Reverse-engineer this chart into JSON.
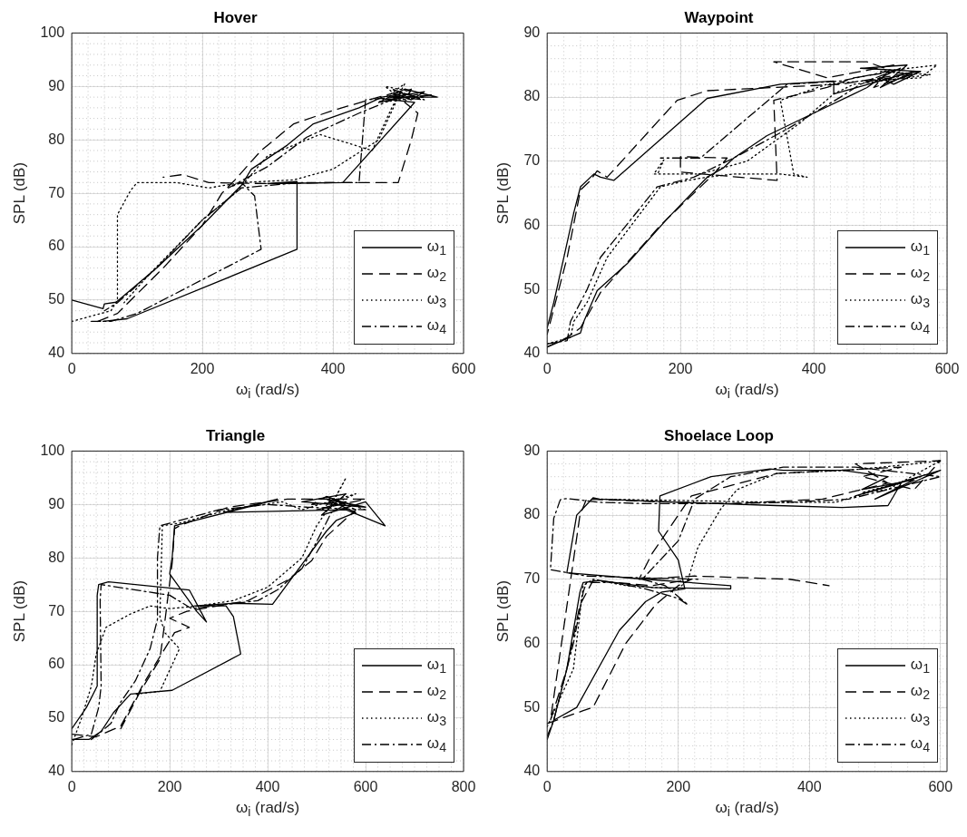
{
  "chart_data": [
    {
      "type": "line",
      "title": "Hover",
      "xlabel": "ω$_{i}$ (rad/s)",
      "ylabel": "SPL (dB)",
      "xlim": [
        0,
        600
      ],
      "xticks": [
        0,
        200,
        400,
        600
      ],
      "ylim": [
        40,
        100
      ],
      "yticks": [
        40,
        50,
        60,
        70,
        80,
        90,
        100
      ],
      "grid": true,
      "legend": "bottom right",
      "series": [
        {
          "name": "ω$_{1}$",
          "color": "#000000",
          "line_style": "solid",
          "x": [
            0,
            48,
            50,
            68,
            130,
            200,
            260,
            275,
            330,
            370,
            440,
            475,
            500,
            520,
            540,
            490,
            560,
            510,
            470,
            530,
            490,
            525,
            415,
            300,
            345,
            345,
            85,
            48
          ],
          "values": [
            50,
            48.4,
            49.3,
            49.6,
            56,
            64,
            71.5,
            74.5,
            79,
            83,
            86,
            88,
            88.5,
            87.5,
            89,
            88,
            88,
            89.5,
            87,
            88.5,
            87.5,
            87,
            72,
            71.8,
            72.2,
            59.5,
            46.5,
            46
          ]
        },
        {
          "name": "ω$_{2}$",
          "color": "#000000",
          "line_style": "dashed",
          "x": [
            40,
            70,
            140,
            200,
            230,
            250,
            290,
            340,
            400,
            470,
            500,
            530,
            555,
            480,
            520,
            510,
            530,
            520,
            500,
            400,
            300,
            210,
            170,
            140
          ],
          "values": [
            46,
            47.5,
            56,
            64,
            70,
            72.5,
            78,
            83,
            85.5,
            88,
            89,
            88,
            88.5,
            87.5,
            89.5,
            87,
            85,
            80,
            72,
            72,
            71.8,
            72,
            73.5,
            73
          ]
        },
        {
          "name": "ω$_{3}$",
          "color": "#000000",
          "line_style": "dotted",
          "x": [
            0,
            60,
            70,
            70,
            90,
            100,
            160,
            210,
            260,
            340,
            400,
            470,
            500,
            480,
            520,
            500,
            540,
            470,
            510,
            490,
            460,
            380,
            300,
            250,
            200,
            120,
            80
          ],
          "values": [
            46,
            48,
            50,
            66,
            70.5,
            72,
            72,
            71,
            72,
            72.5,
            74.5,
            80,
            88,
            90,
            89,
            87.5,
            88,
            87,
            90.5,
            86,
            78,
            81,
            77,
            70,
            65,
            55,
            49.5
          ]
        },
        {
          "name": "ω$_{4}$",
          "color": "#000000",
          "line_style": "dashdot",
          "x": [
            30,
            60,
            100,
            290,
            280,
            260,
            240,
            300,
            360,
            440,
            480,
            510,
            490,
            540,
            500,
            450,
            440,
            350,
            260,
            200,
            130,
            70,
            50
          ],
          "values": [
            46,
            46,
            47.5,
            59.5,
            69.5,
            72,
            71,
            75,
            80.5,
            85,
            87,
            88.5,
            89.5,
            87.5,
            88,
            87.5,
            72,
            72,
            71,
            65,
            56,
            49.5,
            48
          ]
        }
      ]
    },
    {
      "type": "line",
      "title": "Waypoint",
      "xlabel": "ω$_{i}$ (rad/s)",
      "ylabel": "SPL (dB)",
      "xlim": [
        0,
        600
      ],
      "xticks": [
        0,
        200,
        400,
        600
      ],
      "ylim": [
        40,
        90
      ],
      "yticks": [
        40,
        50,
        60,
        70,
        80,
        90
      ],
      "grid": true,
      "legend": "bottom right",
      "series": [
        {
          "name": "ω$_{1}$",
          "color": "#000000",
          "line_style": "solid",
          "x": [
            0,
            50,
            55,
            75,
            120,
            180,
            240,
            265,
            280,
            330,
            400,
            460,
            480,
            500,
            520,
            560,
            470,
            540,
            500,
            550,
            430,
            430,
            350,
            240,
            100,
            80,
            70,
            50,
            40,
            25,
            10,
            0
          ],
          "values": [
            41,
            43.2,
            45,
            49.8,
            54,
            61,
            67.5,
            69,
            70.5,
            74,
            77.5,
            80.5,
            81.5,
            83,
            82,
            84,
            84.5,
            85,
            81.5,
            84,
            80.5,
            82.5,
            82,
            79.8,
            67,
            67.5,
            68,
            66,
            62,
            55,
            48,
            44
          ]
        },
        {
          "name": "ω$_{2}$",
          "color": "#000000",
          "line_style": "dashed",
          "x": [
            0,
            30,
            50,
            80,
            170,
            250,
            270,
            200,
            200,
            345,
            340,
            420,
            460,
            520,
            480,
            340,
            420,
            520,
            490,
            560,
            440,
            240,
            195,
            90,
            75,
            65,
            50,
            30,
            10,
            0
          ],
          "values": [
            41,
            42.5,
            44,
            49.5,
            60,
            68,
            70.5,
            70.7,
            68.3,
            67,
            79.5,
            81.5,
            83,
            84,
            85.5,
            85.5,
            83,
            85,
            81.5,
            84,
            82,
            81,
            79.5,
            67.5,
            68.5,
            67,
            65.5,
            55,
            47,
            43
          ]
        },
        {
          "name": "ω$_{3}$",
          "color": "#000000",
          "line_style": "dotted",
          "x": [
            0,
            35,
            40,
            60,
            90,
            170,
            210,
            240,
            280,
            350,
            390,
            370,
            350,
            420,
            470,
            560,
            585,
            500,
            575,
            460,
            430,
            380,
            300,
            230,
            160,
            175,
            165
          ],
          "values": [
            41.5,
            42.5,
            45,
            48,
            55,
            66,
            67,
            67.5,
            68,
            68,
            67.5,
            68,
            79.5,
            82,
            82.5,
            83,
            85,
            84,
            83.5,
            82,
            80.5,
            76,
            70,
            68,
            68,
            70.2,
            67.8
          ]
        },
        {
          "name": "ω$_{4}$",
          "color": "#000000",
          "line_style": "dashdot",
          "x": [
            0,
            30,
            35,
            60,
            80,
            165,
            220,
            280,
            360,
            440,
            470,
            500,
            530,
            480,
            550,
            510,
            440,
            360,
            230,
            170
          ],
          "values": [
            41.5,
            42,
            45,
            50,
            55,
            66,
            67.5,
            70.5,
            75,
            80,
            82,
            83,
            84.5,
            82.5,
            83.5,
            84,
            82.5,
            82,
            70.5,
            70.5
          ]
        }
      ]
    },
    {
      "type": "line",
      "title": "Triangle",
      "xlabel": "ω$_{i}$ (rad/s)",
      "ylabel": "SPL (dB)",
      "xlim": [
        0,
        800
      ],
      "xticks": [
        0,
        200,
        400,
        600,
        800
      ],
      "ylim": [
        40,
        100
      ],
      "yticks": [
        40,
        50,
        60,
        70,
        80,
        90,
        100
      ],
      "grid": true,
      "legend": "bottom right",
      "series": [
        {
          "name": "ω$_{1}$",
          "color": "#000000",
          "line_style": "solid",
          "x": [
            0,
            35,
            60,
            85,
            120,
            205,
            345,
            330,
            315,
            250,
            330,
            410,
            480,
            520,
            540,
            580,
            520,
            600,
            470,
            560,
            510,
            600,
            640,
            560,
            310,
            420,
            380,
            230,
            210,
            205,
            200,
            255,
            275,
            240,
            75,
            55,
            52,
            52,
            30,
            0
          ],
          "values": [
            46,
            46,
            47.5,
            51,
            54.5,
            55.2,
            62,
            69,
            71,
            71,
            71.5,
            71.3,
            80,
            85,
            87,
            88.5,
            91,
            89.5,
            90.5,
            92,
            88,
            90.5,
            86,
            89,
            88.5,
            91,
            90,
            86.5,
            86,
            80,
            77,
            70,
            68,
            74,
            75.5,
            75,
            73,
            56,
            52,
            48
          ]
        },
        {
          "name": "ω$_{2}$",
          "color": "#000000",
          "line_style": "dashed",
          "x": [
            0,
            50,
            100,
            150,
            210,
            240,
            200,
            235,
            360,
            440,
            490,
            520,
            580,
            520,
            490,
            560,
            500,
            600,
            440,
            320,
            220,
            210,
            205,
            190,
            180,
            140,
            100
          ],
          "values": [
            47,
            46.5,
            48.5,
            57,
            66,
            67,
            68.7,
            70,
            72,
            75.8,
            79.5,
            84,
            89,
            91.5,
            90,
            90.5,
            89,
            91,
            91,
            89.5,
            86,
            85.5,
            79,
            68,
            61,
            55,
            48
          ]
        },
        {
          "name": "ω$_{3}$",
          "color": "#000000",
          "line_style": "dotted",
          "x": [
            0,
            20,
            40,
            50,
            70,
            120,
            160,
            200,
            260,
            330,
            400,
            470,
            500,
            530,
            560,
            540,
            510,
            580,
            470,
            430,
            320,
            220,
            185,
            180,
            190,
            220,
            180,
            130
          ],
          "values": [
            45,
            50,
            56,
            62,
            67,
            69.5,
            71,
            70.5,
            71,
            72,
            74.5,
            80,
            86,
            90,
            95,
            91.5,
            89,
            92,
            89,
            90.5,
            89,
            86.5,
            86,
            69,
            66,
            63,
            55,
            54.5
          ]
        },
        {
          "name": "ω$_{4}$",
          "color": "#000000",
          "line_style": "dashdot",
          "x": [
            5,
            40,
            55,
            60,
            58,
            60,
            200,
            245,
            380,
            420,
            470,
            500,
            530,
            560,
            520,
            600,
            480,
            400,
            300,
            180,
            175,
            175,
            160,
            130,
            100,
            80,
            40
          ],
          "values": [
            46,
            47,
            52,
            56,
            72,
            75,
            73,
            70.5,
            72,
            74,
            78,
            83,
            88.5,
            90,
            91.5,
            89,
            89.5,
            90,
            89,
            86,
            80,
            68.5,
            63,
            57,
            53,
            49,
            46
          ]
        }
      ]
    },
    {
      "type": "line",
      "title": "Shoelace Loop",
      "xlabel": "ω$_{i}$ (rad/s)",
      "ylabel": "SPL (dB)",
      "xlim": [
        0,
        610
      ],
      "xticks": [
        0,
        200,
        400,
        600
      ],
      "ylim": [
        40,
        90
      ],
      "yticks": [
        40,
        50,
        60,
        70,
        80,
        90
      ],
      "grid": true,
      "legend": "bottom right",
      "series": [
        {
          "name": "ω$_{1}$",
          "color": "#000000",
          "line_style": "solid",
          "x": [
            0,
            10,
            45,
            110,
            150,
            175,
            210,
            200,
            170,
            172,
            250,
            340,
            360,
            450,
            520,
            480,
            560,
            500,
            600,
            470,
            540,
            520,
            450,
            350,
            200,
            80,
            70,
            45,
            30,
            150,
            280,
            280,
            160,
            80,
            55,
            50,
            30,
            10
          ],
          "values": [
            45,
            48,
            50,
            62,
            66.5,
            68,
            68.5,
            73,
            77.5,
            83,
            86,
            87.2,
            87,
            87,
            86,
            84,
            85.5,
            82.5,
            87,
            83,
            85,
            81.5,
            81.2,
            81.5,
            82,
            82.5,
            82.7,
            80,
            71,
            70,
            69,
            68.5,
            68.7,
            69.8,
            69.5,
            68,
            56,
            48
          ]
        },
        {
          "name": "ω$_{2}$",
          "color": "#000000",
          "line_style": "dashed",
          "x": [
            0,
            55,
            70,
            120,
            165,
            200,
            220,
            160,
            70,
            50,
            30,
            5,
            50,
            60,
            200,
            280,
            420,
            520,
            470,
            600,
            560,
            480,
            540,
            350,
            220,
            160,
            140,
            225,
            370,
            430
          ],
          "values": [
            47.5,
            49.5,
            50,
            60,
            66,
            69,
            70,
            69,
            69.8,
            66,
            56,
            48,
            80,
            82.5,
            82,
            81.8,
            82.5,
            85,
            88,
            88.5,
            84,
            86,
            87.5,
            86.5,
            83,
            74,
            70,
            70.5,
            70,
            69
          ]
        },
        {
          "name": "ω$_{3}$",
          "color": "#000000",
          "line_style": "dotted",
          "x": [
            0,
            40,
            55,
            70,
            120,
            200,
            215,
            230,
            265,
            290,
            350,
            460,
            560,
            600,
            520,
            480,
            570,
            440,
            350,
            200,
            80
          ],
          "values": [
            47,
            56,
            69,
            70,
            69,
            68.5,
            70,
            75,
            81,
            84,
            86.5,
            87,
            88,
            88.5,
            84,
            83.5,
            86,
            82,
            82,
            82.3,
            82.5
          ]
        },
        {
          "name": "ω$_{4}$",
          "color": "#000000",
          "line_style": "dashdot",
          "x": [
            0,
            10,
            40,
            55,
            60,
            100,
            150,
            200,
            215,
            180,
            145,
            200,
            225,
            280,
            360,
            470,
            600,
            520,
            460,
            370,
            280,
            150,
            80,
            30,
            20,
            10,
            5,
            60,
            150,
            230
          ],
          "values": [
            45.5,
            48,
            60,
            68,
            69.5,
            69.5,
            68.5,
            67,
            66,
            69,
            70,
            76,
            82.5,
            86,
            87.5,
            87.5,
            86,
            84,
            82.5,
            82,
            81.8,
            81.8,
            82,
            82.6,
            82.4,
            79.5,
            71.5,
            70.5,
            70.2,
            70
          ]
        }
      ]
    }
  ]
}
